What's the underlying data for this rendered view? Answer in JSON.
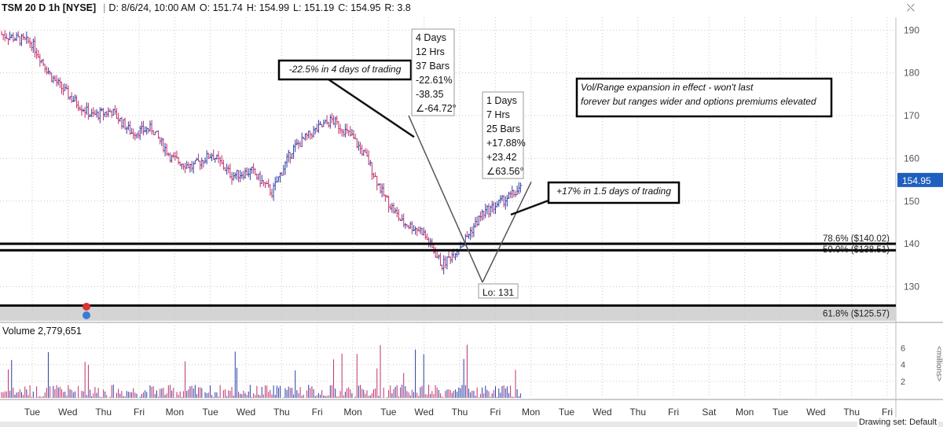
{
  "header": {
    "symbol": "TSM 20 D 1h [NYSE]",
    "date": "D: 8/6/24, 10:00 AM",
    "open": "O: 151.74",
    "high": "H: 154.99",
    "low": "L: 151.19",
    "close": "C: 154.95",
    "range": "R: 3.8"
  },
  "volume_label": "Volume 2,779,651",
  "drawing_set": "Drawing set: Default",
  "colors": {
    "up": "#2b3ea6",
    "down": "#c2306b",
    "grid": "#c8c8c8",
    "price_tag": "#1f5fbf"
  },
  "chart_data": {
    "type": "candlestick",
    "symbol": "TSM",
    "interval": "1h",
    "ylim": [
      122,
      193
    ],
    "y_ticks": [
      130,
      140,
      150,
      160,
      170,
      180,
      190
    ],
    "volume_ylim": [
      0,
      7
    ],
    "volume_ticks": [
      2,
      4,
      6
    ],
    "volume_unit": "<millions>",
    "x_tick_labels": [
      "Tue",
      "Wed",
      "Thu",
      "Fri",
      "Mon",
      "Tue",
      "Wed",
      "Thu",
      "Fri",
      "Mon",
      "Tue",
      "Wed",
      "Thu",
      "Fri",
      "Mon",
      "Tue",
      "Wed",
      "Thu",
      "Fri",
      "Sat",
      "Mon",
      "Tue",
      "Wed",
      "Thu",
      "Fri"
    ],
    "last_price": "154.95",
    "price_path": [
      [
        0,
        189
      ],
      [
        6,
        187
      ],
      [
        10,
        179
      ],
      [
        14,
        174
      ],
      [
        18,
        170
      ],
      [
        22,
        171
      ],
      [
        26,
        166
      ],
      [
        30,
        167
      ],
      [
        34,
        160
      ],
      [
        38,
        158
      ],
      [
        42,
        161
      ],
      [
        46,
        156
      ],
      [
        50,
        157
      ],
      [
        54,
        152
      ],
      [
        58,
        162
      ],
      [
        62,
        166
      ],
      [
        66,
        169
      ],
      [
        70,
        165
      ],
      [
        73,
        160
      ],
      [
        76,
        152
      ],
      [
        80,
        145
      ],
      [
        84,
        143
      ],
      [
        88,
        135
      ],
      [
        92,
        140
      ],
      [
        96,
        147
      ],
      [
        100,
        150
      ],
      [
        104,
        153
      ]
    ],
    "levels": [
      {
        "price": 140.02,
        "label": "78.6% ($140.02)"
      },
      {
        "price": 138.51,
        "label": "50.0% ($138.51)"
      },
      {
        "price": 125.57,
        "label": "61.8% ($125.57)"
      }
    ],
    "annotations": [
      {
        "text": "-22.5% in 4 days of trading"
      },
      {
        "lines": [
          "4 Days",
          "12 Hrs",
          "37 Bars",
          "-22.61%",
          "-38.35",
          "∠-64.72°"
        ]
      },
      {
        "lines": [
          "1 Days",
          "7 Hrs",
          "25 Bars",
          "+17.88%",
          "+23.42",
          "∠63.56°"
        ]
      },
      {
        "text": "+17% in 1.5 days of trading"
      },
      {
        "lines": [
          "Vol/Range expansion in effect - won't last",
          "forever but ranges wider and options premiums elevated"
        ]
      },
      {
        "text": "Lo: 131"
      }
    ]
  }
}
